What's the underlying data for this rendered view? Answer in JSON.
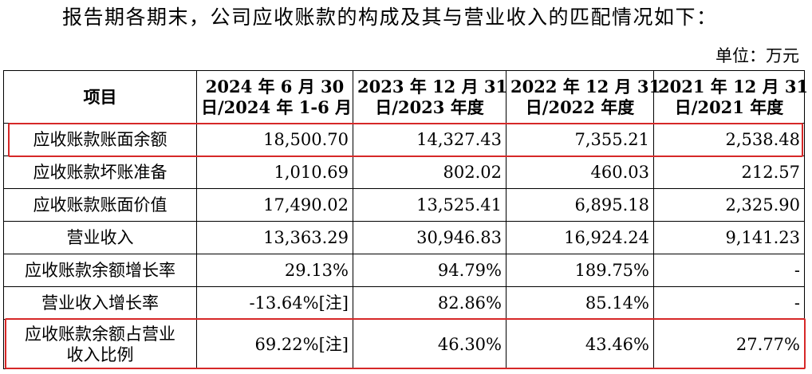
{
  "intro": "报告期各期末，公司应收账款的构成及其与营业收入的匹配情况如下：",
  "unit": "单位：万元",
  "table": {
    "headers": [
      "项目",
      "2024 年 6 月 30 日/2024 年 1-6 月",
      "2023 年 12 月 31 日/2023 年度",
      "2022 年 12 月 31 日/2022 年度",
      "2021 年 12 月 31 日/2021 年度"
    ],
    "header_lines": [
      [
        "项目",
        ""
      ],
      [
        "2024 年 6 月 30",
        "日/2024 年 1-6 月"
      ],
      [
        "2023 年 12 月 31",
        "日/2023 年度"
      ],
      [
        "2022 年 12 月 31",
        "日/2022 年度"
      ],
      [
        "2021 年 12 月 31",
        "日/2021 年度"
      ]
    ],
    "rows": [
      {
        "label": "应收账款账面余额",
        "values": [
          "18,500.70",
          "14,327.43",
          "7,355.21",
          "2,538.48"
        ]
      },
      {
        "label": "应收账款坏账准备",
        "values": [
          "1,010.69",
          "802.02",
          "460.03",
          "212.57"
        ]
      },
      {
        "label": "应收账款账面价值",
        "values": [
          "17,490.02",
          "13,525.41",
          "6,895.18",
          "2,325.90"
        ]
      },
      {
        "label": "营业收入",
        "values": [
          "13,363.29",
          "30,946.83",
          "16,924.24",
          "9,141.23"
        ]
      },
      {
        "label": "应收账款余额增长率",
        "values": [
          "29.13%",
          "94.79%",
          "189.75%",
          "-"
        ]
      },
      {
        "label": "营业收入增长率",
        "values": [
          "-13.64%[注]",
          "82.86%",
          "85.14%",
          "-"
        ]
      },
      {
        "label": "应收账款余额占营业收入比例",
        "label_lines": [
          "应收账款余额占营业",
          "收入比例"
        ],
        "values": [
          "69.22%[注]",
          "46.30%",
          "43.46%",
          "27.77%"
        ]
      }
    ]
  },
  "highlight_color": "#d62828"
}
